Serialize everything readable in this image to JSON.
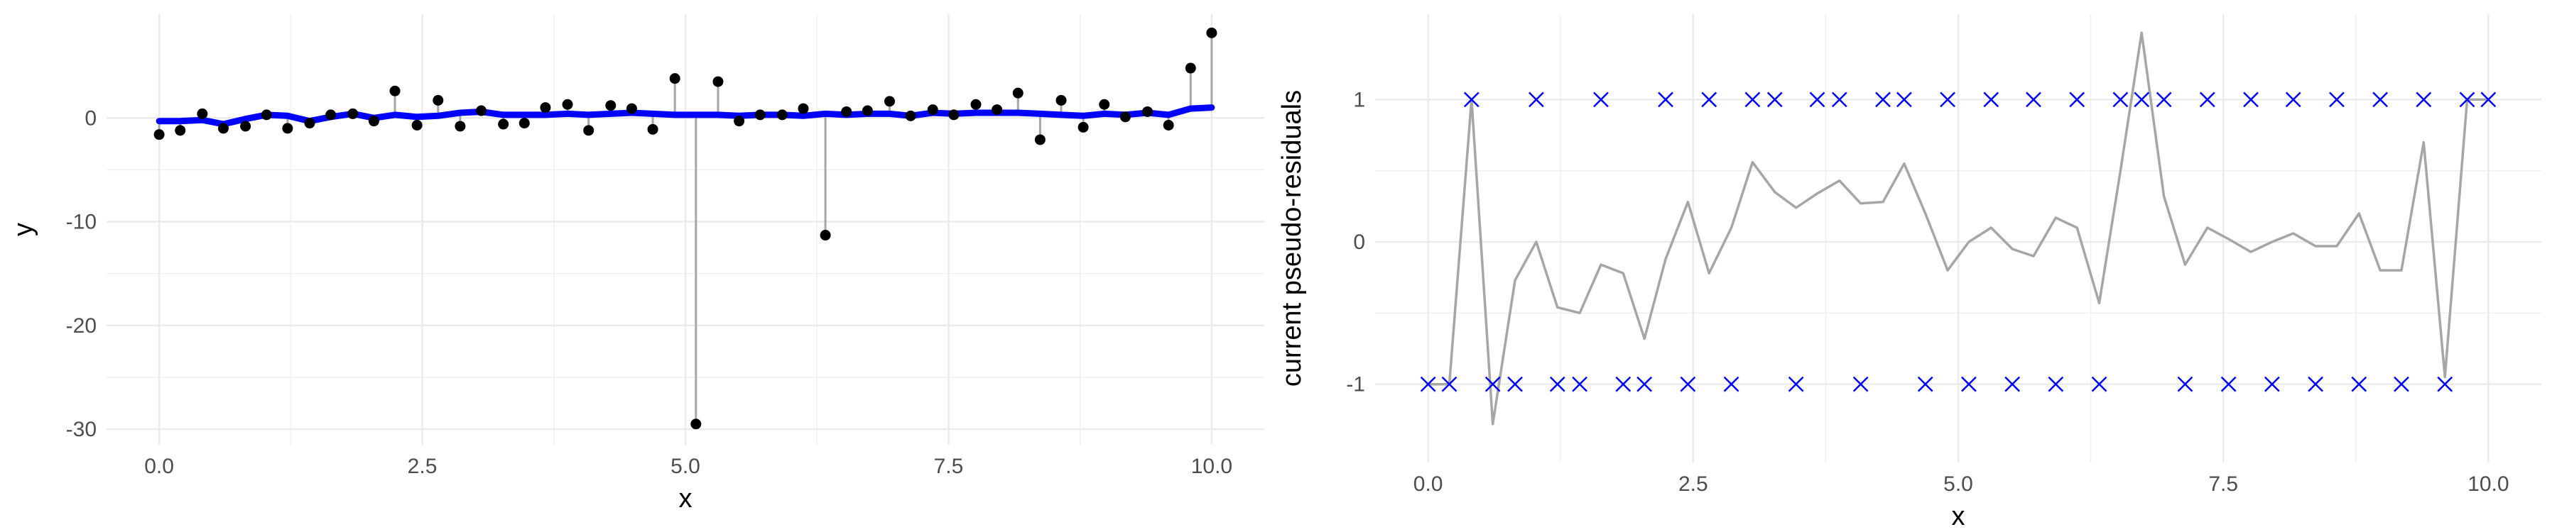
{
  "chart_data": [
    {
      "type": "scatter",
      "title": "",
      "xlabel": "x",
      "ylabel": "y",
      "xlim": [
        -0.5,
        10.5
      ],
      "ylim": [
        -31.5,
        10
      ],
      "grid": true,
      "xticks": [
        0,
        2.5,
        5,
        7.5,
        10
      ],
      "xtick_labels": [
        "0.0",
        "2.5",
        "5.0",
        "7.5",
        "10.0"
      ],
      "yticks": [
        0,
        -10,
        -20,
        -30
      ],
      "ytick_labels": [
        "0",
        "-10",
        "-20",
        "-30"
      ],
      "x": [
        0,
        0.2,
        0.41,
        0.61,
        0.82,
        1.02,
        1.22,
        1.43,
        1.63,
        1.84,
        2.04,
        2.24,
        2.45,
        2.65,
        2.86,
        3.06,
        3.27,
        3.47,
        3.67,
        3.88,
        4.08,
        4.29,
        4.49,
        4.69,
        4.9,
        5.1,
        5.31,
        5.51,
        5.71,
        5.92,
        6.12,
        6.33,
        6.53,
        6.73,
        6.94,
        7.14,
        7.35,
        7.55,
        7.76,
        7.96,
        8.16,
        8.37,
        8.57,
        8.78,
        8.98,
        9.18,
        9.39,
        9.59,
        9.8,
        10
      ],
      "y": [
        -1.6,
        -1.2,
        0.4,
        -1.0,
        -0.8,
        0.3,
        -1.0,
        -0.5,
        0.3,
        0.4,
        -0.3,
        2.6,
        -0.7,
        1.7,
        -0.8,
        0.7,
        -0.6,
        -0.5,
        1.0,
        1.3,
        -1.2,
        1.2,
        0.9,
        -1.1,
        3.8,
        -29.5,
        3.5,
        -0.3,
        0.3,
        0.3,
        0.9,
        -11.3,
        0.6,
        0.7,
        1.6,
        0.2,
        0.8,
        0.3,
        1.3,
        0.8,
        2.4,
        -2.1,
        1.7,
        -0.9,
        1.3,
        0.1,
        0.6,
        -0.7,
        4.8,
        8.2
      ],
      "fit": [
        -0.3,
        -0.3,
        -0.2,
        -0.6,
        -0.1,
        0.3,
        0.2,
        -0.3,
        0.1,
        0.4,
        0.0,
        0.3,
        0.1,
        0.2,
        0.5,
        0.6,
        0.3,
        0.3,
        0.3,
        0.4,
        0.3,
        0.4,
        0.5,
        0.4,
        0.3,
        0.3,
        0.3,
        0.2,
        0.3,
        0.3,
        0.2,
        0.4,
        0.3,
        0.4,
        0.4,
        0.2,
        0.5,
        0.4,
        0.5,
        0.5,
        0.5,
        0.4,
        0.3,
        0.2,
        0.4,
        0.3,
        0.5,
        0.3,
        0.9,
        1.0
      ],
      "colors": {
        "points": "#000000",
        "segments": "#a6a6a6",
        "fit": "#0000ff"
      }
    },
    {
      "type": "line",
      "title": "",
      "xlabel": "x",
      "ylabel": "current pseudo-residuals",
      "xlim": [
        -0.5,
        10.5
      ],
      "ylim": [
        -1.55,
        1.6
      ],
      "grid": true,
      "xticks": [
        0,
        2.5,
        5,
        7.5,
        10
      ],
      "xtick_labels": [
        "0.0",
        "2.5",
        "5.0",
        "7.5",
        "10.0"
      ],
      "yticks": [
        1,
        0,
        -1
      ],
      "ytick_labels": [
        "1",
        "0",
        "-1"
      ],
      "x": [
        0,
        0.2,
        0.41,
        0.61,
        0.82,
        1.02,
        1.22,
        1.43,
        1.63,
        1.84,
        2.04,
        2.24,
        2.45,
        2.65,
        2.86,
        3.06,
        3.27,
        3.47,
        3.67,
        3.88,
        4.08,
        4.29,
        4.49,
        4.69,
        4.9,
        5.1,
        5.31,
        5.51,
        5.71,
        5.92,
        6.12,
        6.33,
        6.53,
        6.73,
        6.94,
        7.14,
        7.35,
        7.55,
        7.76,
        7.96,
        8.16,
        8.37,
        8.57,
        8.78,
        8.98,
        9.18,
        9.39,
        9.59,
        9.8,
        10
      ],
      "markers": [
        -1,
        -1,
        1,
        -1,
        -1,
        1,
        -1,
        -1,
        1,
        -1,
        -1,
        1,
        -1,
        1,
        -1,
        1,
        1,
        -1,
        1,
        1,
        -1,
        1,
        1,
        -1,
        1,
        -1,
        1,
        -1,
        1,
        -1,
        1,
        -1,
        1,
        1,
        1,
        -1,
        1,
        -1,
        1,
        -1,
        1,
        -1,
        1,
        -1,
        1,
        -1,
        1,
        -1,
        1,
        1
      ],
      "line": [
        -1.0,
        -1.0,
        1.0,
        -1.28,
        -0.27,
        0.0,
        -0.46,
        -0.5,
        -0.16,
        -0.22,
        -0.68,
        -0.12,
        0.28,
        -0.22,
        0.1,
        0.56,
        0.35,
        0.24,
        0.34,
        0.43,
        0.27,
        0.28,
        0.55,
        0.2,
        -0.2,
        0.0,
        0.1,
        -0.05,
        -0.1,
        0.17,
        0.1,
        -0.43,
        0.5,
        1.47,
        0.32,
        -0.16,
        0.1,
        0.02,
        -0.07,
        0.0,
        0.06,
        -0.03,
        -0.03,
        0.2,
        -0.2,
        -0.2,
        0.7,
        -0.95,
        1.0,
        1.0
      ],
      "colors": {
        "markers": "#0000ff",
        "line": "#a6a6a6"
      }
    }
  ]
}
